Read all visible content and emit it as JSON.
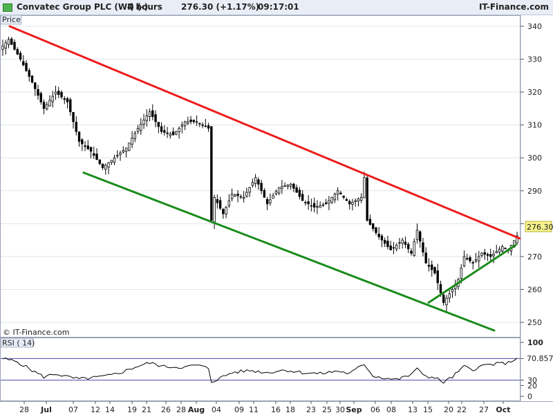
{
  "header": {
    "title": "Convatec Group PLC (WI) (-)",
    "timeframe": "4 hours",
    "price_change": "276.30 (+1.17%)",
    "time": "09:17:01",
    "brand": "IT-Finance.com"
  },
  "watermark": "© IT-Finance.com",
  "colors": {
    "resistance": "#ee1c1c",
    "support": "#1a8c1a",
    "up_candle": "#ffffff",
    "down_candle": "#000000",
    "price_label_bg": "#f5f28c"
  },
  "chart_data": [
    {
      "type": "candlestick",
      "panel_label": "Price",
      "y_ticks": [
        250,
        260,
        270,
        280,
        290,
        300,
        310,
        320,
        330,
        340
      ],
      "ylim": [
        247.5,
        341.5
      ],
      "x_tick_labels": [
        "28",
        "Jul",
        "07",
        "12",
        "14",
        "19",
        "21",
        "26",
        "28",
        "Aug",
        "04",
        "09",
        "11",
        "16",
        "18",
        "23",
        "25",
        "30",
        "Sep",
        "06",
        "08",
        "13",
        "15",
        "20",
        "22",
        "27",
        "Oct"
      ],
      "x_tick_bold": [
        "Jul",
        "Aug",
        "Sep",
        "Oct"
      ],
      "current_price": "276.30",
      "keypoints": [
        {
          "i": 0,
          "v": 334
        },
        {
          "i": 2,
          "v": 336
        },
        {
          "i": 6,
          "v": 330
        },
        {
          "i": 10,
          "v": 323
        },
        {
          "i": 14,
          "v": 315
        },
        {
          "i": 18,
          "v": 320
        },
        {
          "i": 22,
          "v": 317
        },
        {
          "i": 26,
          "v": 305
        },
        {
          "i": 30,
          "v": 302
        },
        {
          "i": 34,
          "v": 297
        },
        {
          "i": 38,
          "v": 300
        },
        {
          "i": 42,
          "v": 303
        },
        {
          "i": 46,
          "v": 309
        },
        {
          "i": 50,
          "v": 314
        },
        {
          "i": 54,
          "v": 308
        },
        {
          "i": 58,
          "v": 307
        },
        {
          "i": 62,
          "v": 311
        },
        {
          "i": 66,
          "v": 311
        },
        {
          "i": 70,
          "v": 309
        },
        {
          "i": 71,
          "v": 281
        },
        {
          "i": 72,
          "v": 288
        },
        {
          "i": 75,
          "v": 283
        },
        {
          "i": 78,
          "v": 289
        },
        {
          "i": 82,
          "v": 288
        },
        {
          "i": 86,
          "v": 294
        },
        {
          "i": 90,
          "v": 286
        },
        {
          "i": 94,
          "v": 291
        },
        {
          "i": 98,
          "v": 292
        },
        {
          "i": 102,
          "v": 287
        },
        {
          "i": 106,
          "v": 285
        },
        {
          "i": 110,
          "v": 286
        },
        {
          "i": 114,
          "v": 290
        },
        {
          "i": 118,
          "v": 286
        },
        {
          "i": 122,
          "v": 288
        },
        {
          "i": 123,
          "v": 294
        },
        {
          "i": 124,
          "v": 281
        },
        {
          "i": 128,
          "v": 276
        },
        {
          "i": 132,
          "v": 272
        },
        {
          "i": 136,
          "v": 275
        },
        {
          "i": 139,
          "v": 271
        },
        {
          "i": 141,
          "v": 278
        },
        {
          "i": 144,
          "v": 268
        },
        {
          "i": 147,
          "v": 265
        },
        {
          "i": 150,
          "v": 256
        },
        {
          "i": 153,
          "v": 260
        },
        {
          "i": 155,
          "v": 263
        },
        {
          "i": 157,
          "v": 270
        },
        {
          "i": 160,
          "v": 268
        },
        {
          "i": 163,
          "v": 271
        },
        {
          "i": 166,
          "v": 270
        },
        {
          "i": 170,
          "v": 273
        },
        {
          "i": 172,
          "v": 272
        },
        {
          "i": 175,
          "v": 276.3
        }
      ],
      "trendlines": [
        {
          "name": "resistance",
          "points": [
            [
              "Jun 27",
              340
            ],
            [
              "Oct 02",
              275.5
            ]
          ]
        },
        {
          "name": "support",
          "points": [
            [
              "Jul 07",
              295.5
            ],
            [
              "Oct 01",
              247.5
            ]
          ]
        },
        {
          "name": "support-short",
          "points": [
            [
              "Sep 15",
              256
            ],
            [
              "Oct 02",
              273.5
            ]
          ]
        }
      ]
    },
    {
      "type": "line",
      "panel_label": "RSI ( 14)",
      "y_ticks": [
        0,
        20,
        30,
        70,
        100
      ],
      "ylim": [
        -5,
        102
      ],
      "levels": [
        30,
        70
      ],
      "current_value": "70.857",
      "keypoints": [
        {
          "i": 0,
          "v": 70
        },
        {
          "i": 5,
          "v": 64
        },
        {
          "i": 10,
          "v": 48
        },
        {
          "i": 14,
          "v": 36
        },
        {
          "i": 18,
          "v": 42
        },
        {
          "i": 22,
          "v": 36
        },
        {
          "i": 26,
          "v": 32
        },
        {
          "i": 30,
          "v": 34
        },
        {
          "i": 36,
          "v": 38
        },
        {
          "i": 40,
          "v": 44
        },
        {
          "i": 46,
          "v": 56
        },
        {
          "i": 50,
          "v": 62
        },
        {
          "i": 55,
          "v": 55
        },
        {
          "i": 62,
          "v": 54
        },
        {
          "i": 66,
          "v": 58
        },
        {
          "i": 70,
          "v": 52
        },
        {
          "i": 71,
          "v": 27
        },
        {
          "i": 74,
          "v": 34
        },
        {
          "i": 78,
          "v": 44
        },
        {
          "i": 84,
          "v": 48
        },
        {
          "i": 90,
          "v": 44
        },
        {
          "i": 96,
          "v": 49
        },
        {
          "i": 102,
          "v": 44
        },
        {
          "i": 108,
          "v": 42
        },
        {
          "i": 114,
          "v": 47
        },
        {
          "i": 118,
          "v": 42
        },
        {
          "i": 123,
          "v": 60
        },
        {
          "i": 126,
          "v": 38
        },
        {
          "i": 130,
          "v": 34
        },
        {
          "i": 134,
          "v": 31
        },
        {
          "i": 138,
          "v": 38
        },
        {
          "i": 141,
          "v": 50
        },
        {
          "i": 144,
          "v": 38
        },
        {
          "i": 148,
          "v": 32
        },
        {
          "i": 150,
          "v": 26
        },
        {
          "i": 153,
          "v": 36
        },
        {
          "i": 157,
          "v": 55
        },
        {
          "i": 160,
          "v": 50
        },
        {
          "i": 164,
          "v": 58
        },
        {
          "i": 168,
          "v": 60
        },
        {
          "i": 172,
          "v": 62
        },
        {
          "i": 175,
          "v": 70.857
        }
      ]
    }
  ]
}
